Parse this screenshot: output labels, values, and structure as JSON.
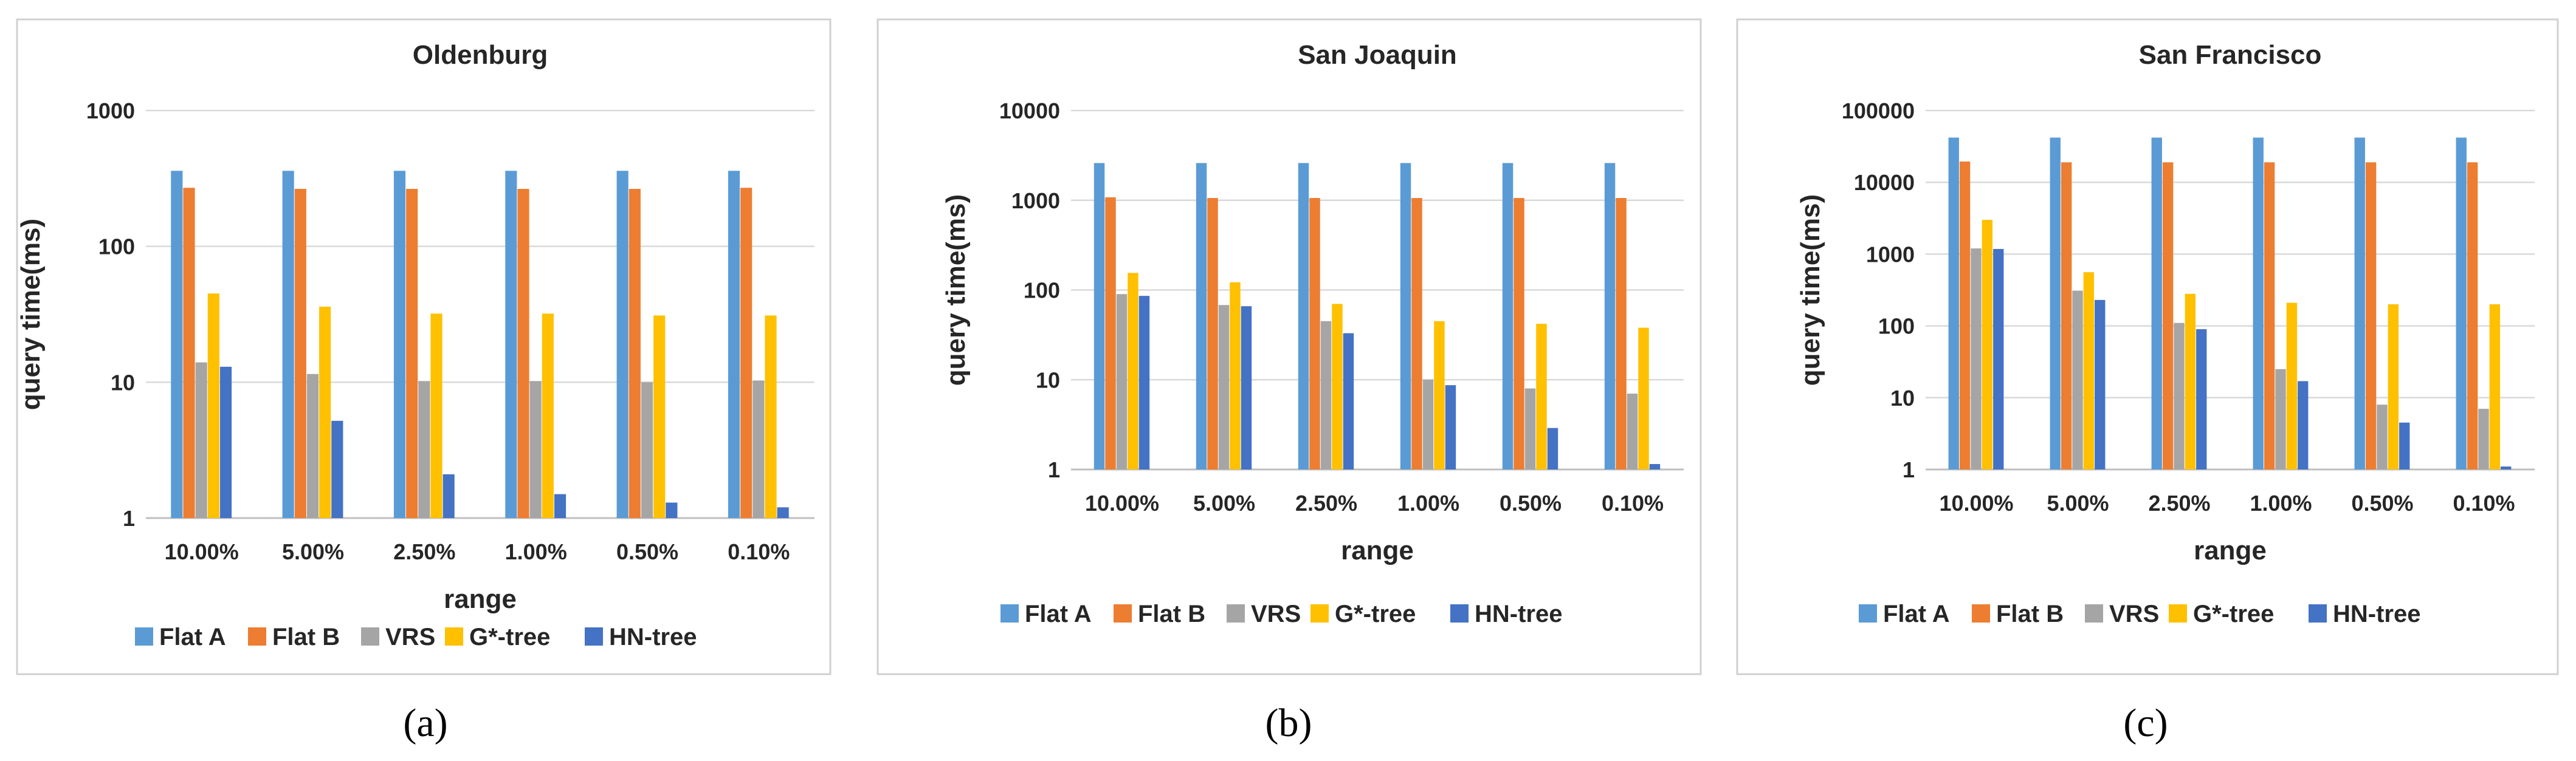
{
  "colors": {
    "Flat A": "#5b9bd5",
    "Flat B": "#ed7d31",
    "VRS": "#a5a5a5",
    "G*-tree": "#ffc000",
    "HN-tree": "#4472c4"
  },
  "chart_data": [
    {
      "type": "bar",
      "yscale": "log",
      "title": "Oldenburg",
      "xlabel": "range",
      "ylabel": "query time(ms)",
      "caption": "(a)",
      "ylim": [
        1,
        1000
      ],
      "yticks": [
        "1",
        "10",
        "100",
        "1000"
      ],
      "categories": [
        "10.00%",
        "5.00%",
        "2.50%",
        "1.00%",
        "0.50%",
        "0.10%"
      ],
      "legend": [
        "Flat A",
        "Flat B",
        "VRS",
        "G*-tree",
        "HN-tree"
      ],
      "series": [
        {
          "name": "Flat A",
          "values": [
            360,
            360,
            360,
            360,
            360,
            360
          ]
        },
        {
          "name": "Flat B",
          "values": [
            270,
            265,
            265,
            265,
            265,
            270
          ]
        },
        {
          "name": "VRS",
          "values": [
            14,
            11.5,
            10.2,
            10.2,
            10,
            10.3
          ]
        },
        {
          "name": "G*-tree",
          "values": [
            45,
            36,
            32,
            32,
            31,
            31
          ]
        },
        {
          "name": "HN-tree",
          "values": [
            13,
            5.2,
            2.1,
            1.5,
            1.3,
            1.2
          ]
        }
      ]
    },
    {
      "type": "bar",
      "yscale": "log",
      "title": "San Joaquin",
      "xlabel": "range",
      "ylabel": "query time(ms)",
      "caption": "(b)",
      "ylim": [
        1,
        10000
      ],
      "yticks": [
        "1",
        "10",
        "100",
        "1000",
        "10000"
      ],
      "categories": [
        "10.00%",
        "5.00%",
        "2.50%",
        "1.00%",
        "0.50%",
        "0.10%"
      ],
      "legend": [
        "Flat A",
        "Flat B",
        "VRS",
        "G*-tree",
        "HN-tree"
      ],
      "series": [
        {
          "name": "Flat A",
          "values": [
            2600,
            2600,
            2600,
            2600,
            2600,
            2600
          ]
        },
        {
          "name": "Flat B",
          "values": [
            1080,
            1060,
            1060,
            1060,
            1060,
            1060
          ]
        },
        {
          "name": "VRS",
          "values": [
            90,
            68,
            45,
            10,
            8,
            7
          ]
        },
        {
          "name": "G*-tree",
          "values": [
            155,
            122,
            70,
            45,
            42,
            38
          ]
        },
        {
          "name": "HN-tree",
          "values": [
            86,
            66,
            33,
            8.7,
            2.9,
            1.15
          ]
        }
      ]
    },
    {
      "type": "bar",
      "yscale": "log",
      "title": "San Francisco",
      "xlabel": "range",
      "ylabel": "query time(ms)",
      "caption": "(c)",
      "ylim": [
        1,
        100000
      ],
      "yticks": [
        "1",
        "10",
        "100",
        "1000",
        "10000",
        "100000"
      ],
      "categories": [
        "10.00%",
        "5.00%",
        "2.50%",
        "1.00%",
        "0.50%",
        "0.10%"
      ],
      "legend": [
        "Flat A",
        "Flat B",
        "VRS",
        "G*-tree",
        "HN-tree"
      ],
      "series": [
        {
          "name": "Flat A",
          "values": [
            42000,
            42000,
            42000,
            42000,
            42000,
            42000
          ]
        },
        {
          "name": "Flat B",
          "values": [
            19500,
            19000,
            19000,
            19000,
            19000,
            19000
          ]
        },
        {
          "name": "VRS",
          "values": [
            1200,
            310,
            110,
            25,
            8,
            7
          ]
        },
        {
          "name": "G*-tree",
          "values": [
            3000,
            560,
            280,
            210,
            200,
            200
          ]
        },
        {
          "name": "HN-tree",
          "values": [
            1180,
            230,
            90,
            17,
            4.5,
            1.1
          ]
        }
      ]
    }
  ]
}
